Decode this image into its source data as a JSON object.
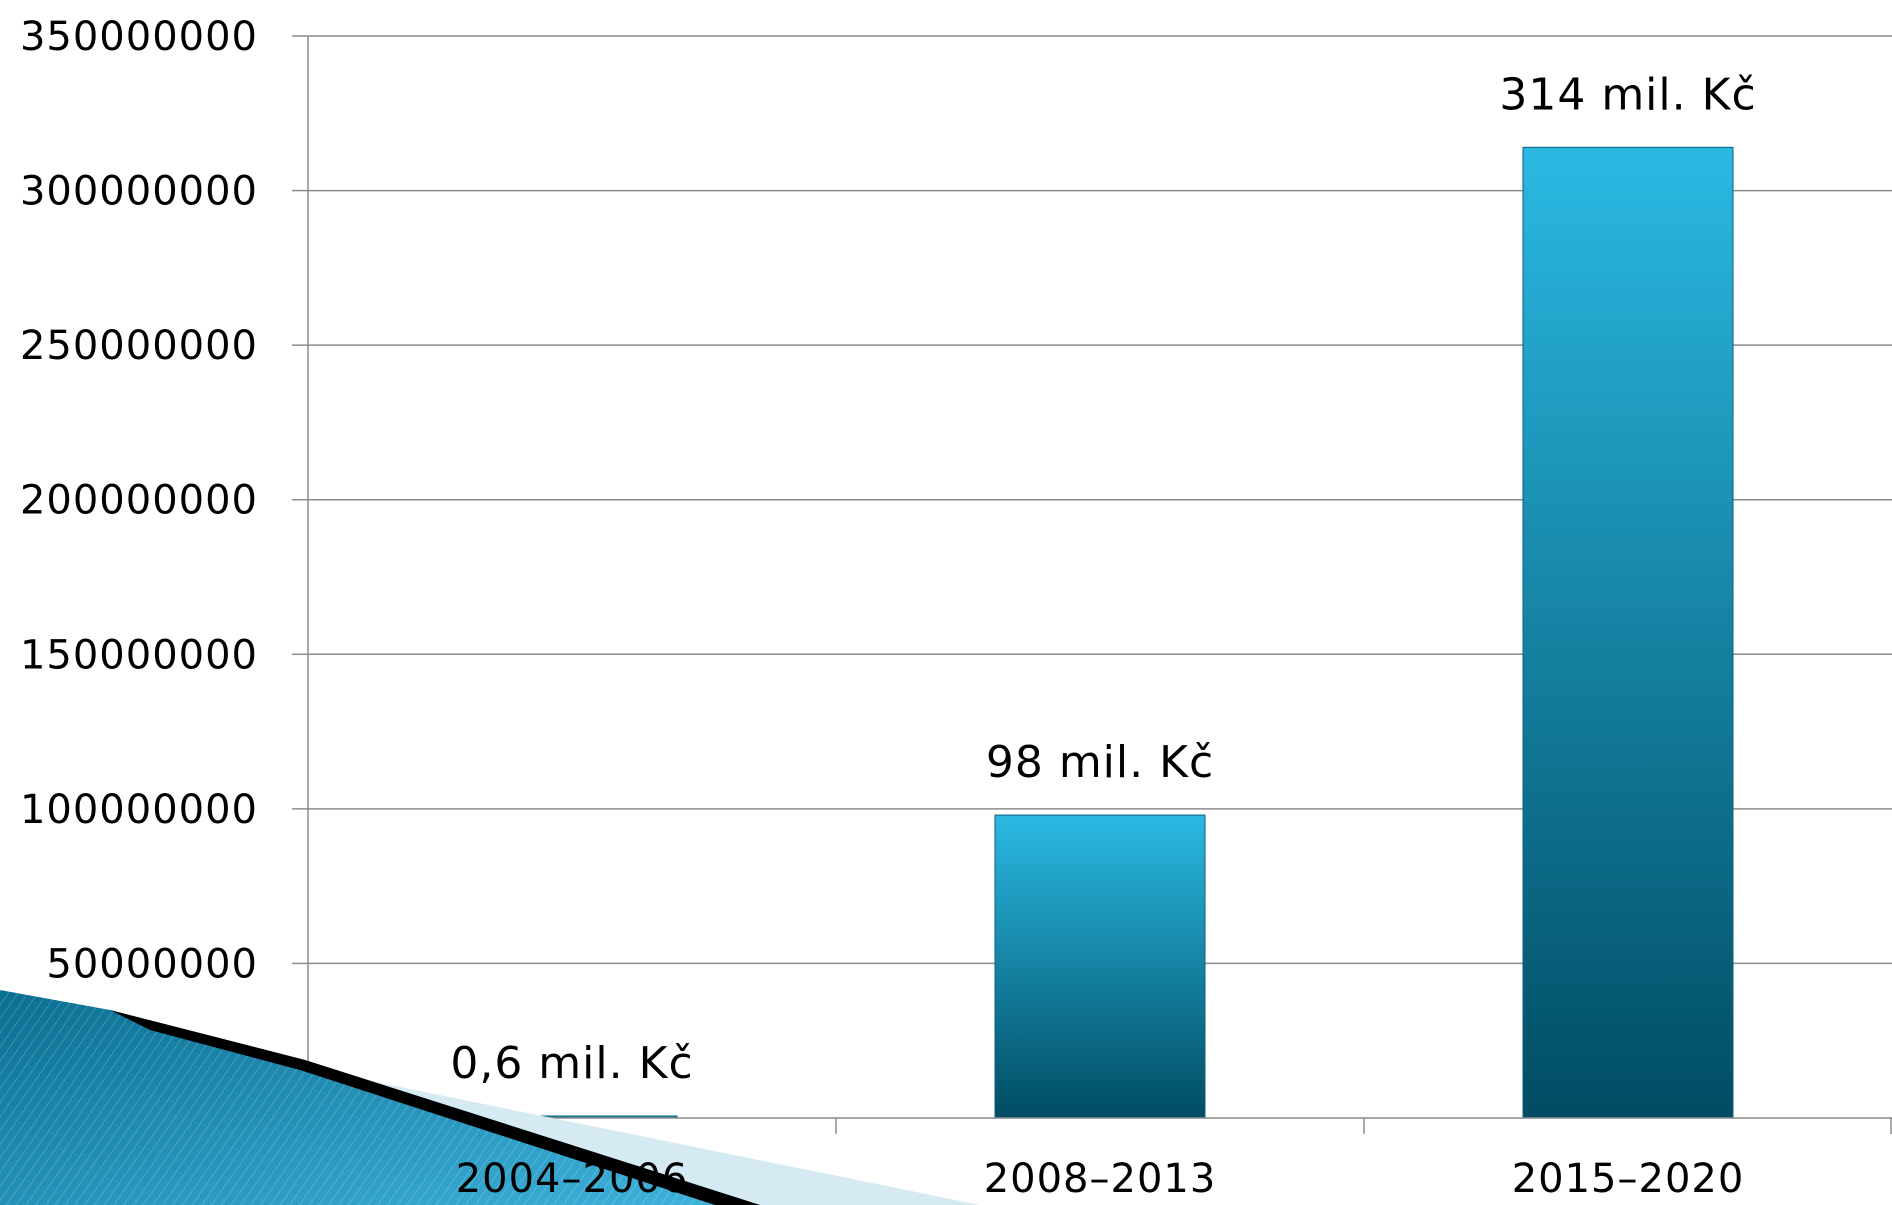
{
  "chart_data": {
    "type": "bar",
    "categories": [
      "2004–2006",
      "2008–2013",
      "2015–2020"
    ],
    "values": [
      600000,
      98000000,
      314000000
    ],
    "data_labels": [
      "0,6 mil. Kč",
      "98 mil. Kč",
      "314 mil. Kč"
    ],
    "y_ticks": [
      "0",
      "50000000",
      "100000000",
      "150000000",
      "200000000",
      "250000000",
      "300000000",
      "350000000"
    ],
    "ylim": [
      0,
      350000000
    ],
    "grid": true,
    "legend": "none",
    "colors": {
      "bar_top": "#2bb9e3",
      "bar_bottom": "#004c63",
      "grid": "#8c8c8c",
      "decor_dark": "#000000",
      "decor_light": "#d6eaf3",
      "decor_blue": "#1a8fbd"
    }
  }
}
